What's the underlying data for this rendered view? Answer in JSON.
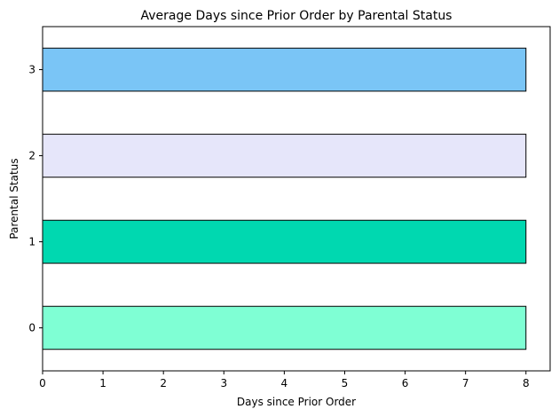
{
  "chart_data": {
    "type": "bar",
    "orientation": "horizontal",
    "title": "Average Days since Prior Order by Parental Status",
    "xlabel": "Days since Prior Order",
    "ylabel": "Parental Status",
    "categories": [
      "0",
      "1",
      "2",
      "3"
    ],
    "values": [
      8,
      8,
      8,
      8
    ],
    "bar_colors": [
      "#7fffd4",
      "#00d8b0",
      "#e6e6fa",
      "#7ac5f6"
    ],
    "bar_edge_color": "#000000",
    "xlim": [
      0,
      8.4
    ],
    "x_ticks": [
      0,
      1,
      2,
      3,
      4,
      5,
      6,
      7,
      8
    ],
    "grid": false,
    "legend": "none"
  }
}
